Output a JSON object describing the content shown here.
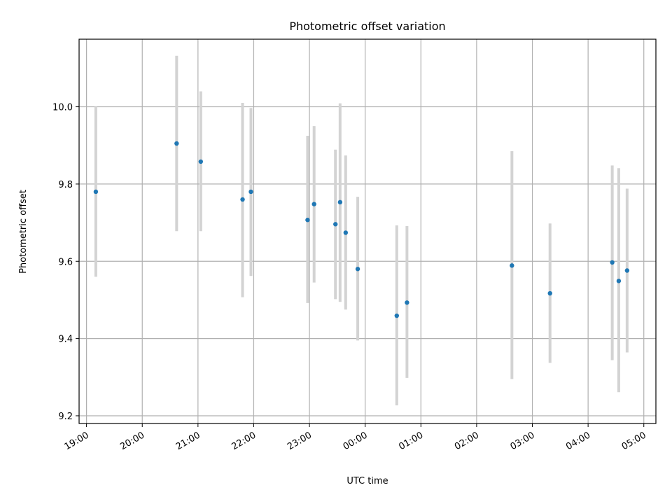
{
  "chart_data": {
    "type": "scatter",
    "title": "Photometric offset variation",
    "xlabel": "UTC time",
    "ylabel": "Photometric offset",
    "xlim": [
      "18:52",
      "05:13"
    ],
    "ylim": [
      9.18,
      10.175
    ],
    "grid": true,
    "x_ticks": [
      "19:00",
      "20:00",
      "21:00",
      "22:00",
      "23:00",
      "00:00",
      "01:00",
      "02:00",
      "03:00",
      "04:00",
      "05:00"
    ],
    "y_ticks": [
      9.2,
      9.4,
      9.6,
      9.8,
      10.0
    ],
    "y_tick_labels": [
      "9.2",
      "9.4",
      "9.6",
      "9.8",
      "10.0"
    ],
    "colors": {
      "point": "#1f77b4",
      "errorbar": "#d3d3d3"
    },
    "points": [
      {
        "time": "19:10",
        "y": 9.78,
        "yerr_low": 9.56,
        "yerr_high": 10.0
      },
      {
        "time": "20:37",
        "y": 9.905,
        "yerr_low": 9.678,
        "yerr_high": 10.132
      },
      {
        "time": "21:03",
        "y": 9.858,
        "yerr_low": 9.678,
        "yerr_high": 10.04
      },
      {
        "time": "21:48",
        "y": 9.76,
        "yerr_low": 9.507,
        "yerr_high": 10.01
      },
      {
        "time": "21:57",
        "y": 9.78,
        "yerr_low": 9.562,
        "yerr_high": 9.997
      },
      {
        "time": "22:58",
        "y": 9.707,
        "yerr_low": 9.492,
        "yerr_high": 9.925
      },
      {
        "time": "23:05",
        "y": 9.748,
        "yerr_low": 9.545,
        "yerr_high": 9.95
      },
      {
        "time": "23:28",
        "y": 9.696,
        "yerr_low": 9.502,
        "yerr_high": 9.889
      },
      {
        "time": "23:33",
        "y": 9.753,
        "yerr_low": 9.495,
        "yerr_high": 10.009
      },
      {
        "time": "23:39",
        "y": 9.674,
        "yerr_low": 9.475,
        "yerr_high": 9.874
      },
      {
        "time": "23:52",
        "y": 9.58,
        "yerr_low": 9.395,
        "yerr_high": 9.767
      },
      {
        "time": "00:34",
        "y": 9.459,
        "yerr_low": 9.227,
        "yerr_high": 9.693
      },
      {
        "time": "00:45",
        "y": 9.493,
        "yerr_low": 9.298,
        "yerr_high": 9.691
      },
      {
        "time": "02:38",
        "y": 9.589,
        "yerr_low": 9.295,
        "yerr_high": 9.885
      },
      {
        "time": "03:19",
        "y": 9.517,
        "yerr_low": 9.337,
        "yerr_high": 9.698
      },
      {
        "time": "04:26",
        "y": 9.597,
        "yerr_low": 9.344,
        "yerr_high": 9.848
      },
      {
        "time": "04:33",
        "y": 9.549,
        "yerr_low": 9.261,
        "yerr_high": 9.841
      },
      {
        "time": "04:42",
        "y": 9.576,
        "yerr_low": 9.364,
        "yerr_high": 9.788
      }
    ]
  }
}
